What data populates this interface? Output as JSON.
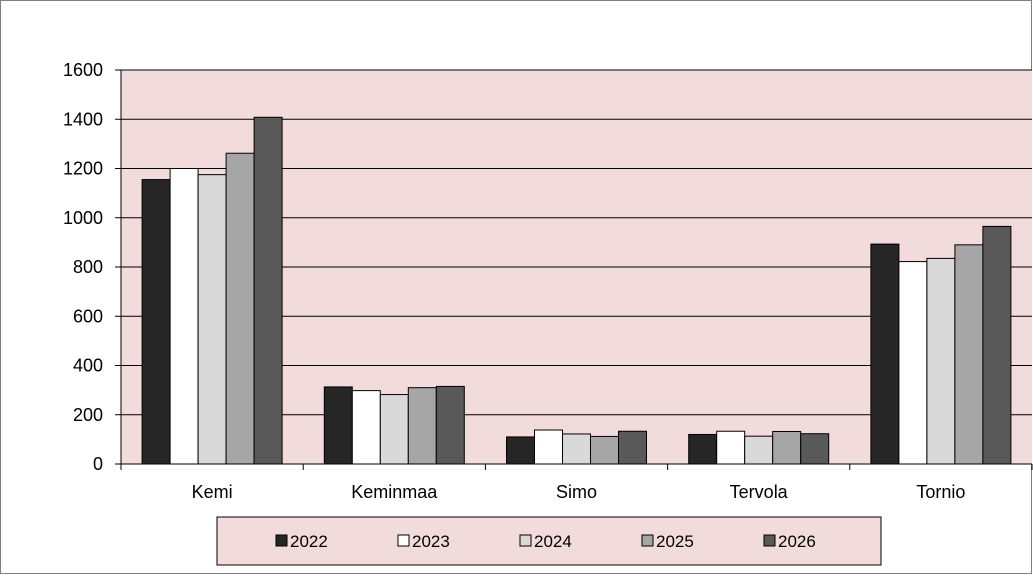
{
  "chart_data": {
    "type": "bar",
    "categories": [
      "Kemi",
      "Keminmaa",
      "Simo",
      "Tervola",
      "Tornio"
    ],
    "series": [
      {
        "name": "2022",
        "color": "#262626",
        "values": [
          1155,
          313,
          110,
          120,
          893
        ]
      },
      {
        "name": "2023",
        "color": "#ffffff",
        "values": [
          1200,
          298,
          138,
          133,
          822
        ]
      },
      {
        "name": "2024",
        "color": "#d9d9d9",
        "values": [
          1175,
          282,
          122,
          113,
          835
        ]
      },
      {
        "name": "2025",
        "color": "#a6a6a6",
        "values": [
          1262,
          310,
          112,
          132,
          890
        ]
      },
      {
        "name": "2026",
        "color": "#595959",
        "values": [
          1408,
          315,
          133,
          123,
          965
        ]
      }
    ],
    "title": "",
    "xlabel": "",
    "ylabel": "",
    "ylim": [
      0,
      1600
    ],
    "yticks": [
      0,
      200,
      400,
      600,
      800,
      1000,
      1200,
      1400,
      1600
    ],
    "grid": true,
    "legend_position": "bottom",
    "plot_background": "#f2dcdb",
    "legend_background": "#f2dcdb"
  }
}
